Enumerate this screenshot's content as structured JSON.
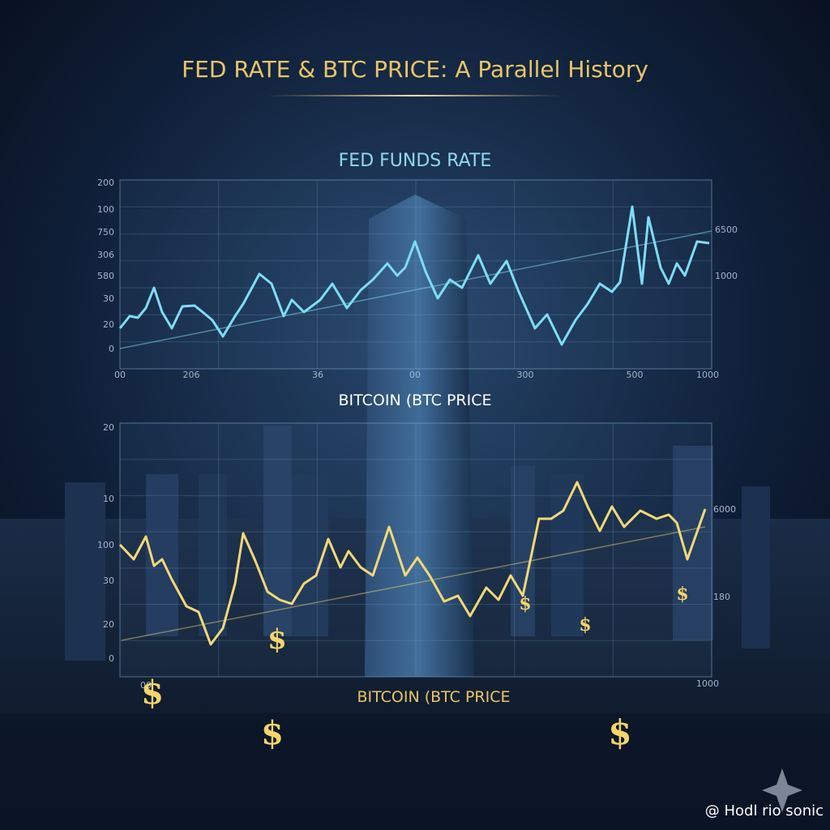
{
  "header": {
    "title": "FED RATE & BTC PRICE: A Parallel History"
  },
  "fed_panel": {
    "title": "FED FUNDS RATE",
    "left_labels": [
      "200",
      "100",
      "750",
      "306",
      "580",
      "30",
      "20",
      "0"
    ],
    "right_labels": [
      "6500",
      "1000"
    ],
    "bottom_labels": [
      "00",
      "206",
      "36",
      "00",
      "300",
      "500",
      "1000"
    ]
  },
  "btc_panel": {
    "title": "BITCOIN (BTC PRICE",
    "left_labels": [
      "20",
      "10",
      "100",
      "30",
      "20",
      "0"
    ],
    "right_labels": [
      "6000",
      "180"
    ],
    "bottom_labels": [
      "00",
      "1000"
    ],
    "caption": "BITCOIN (BTC PRICE"
  },
  "decoration": {
    "dollar": "$"
  },
  "watermark": "@ Hodl rio sonic"
}
